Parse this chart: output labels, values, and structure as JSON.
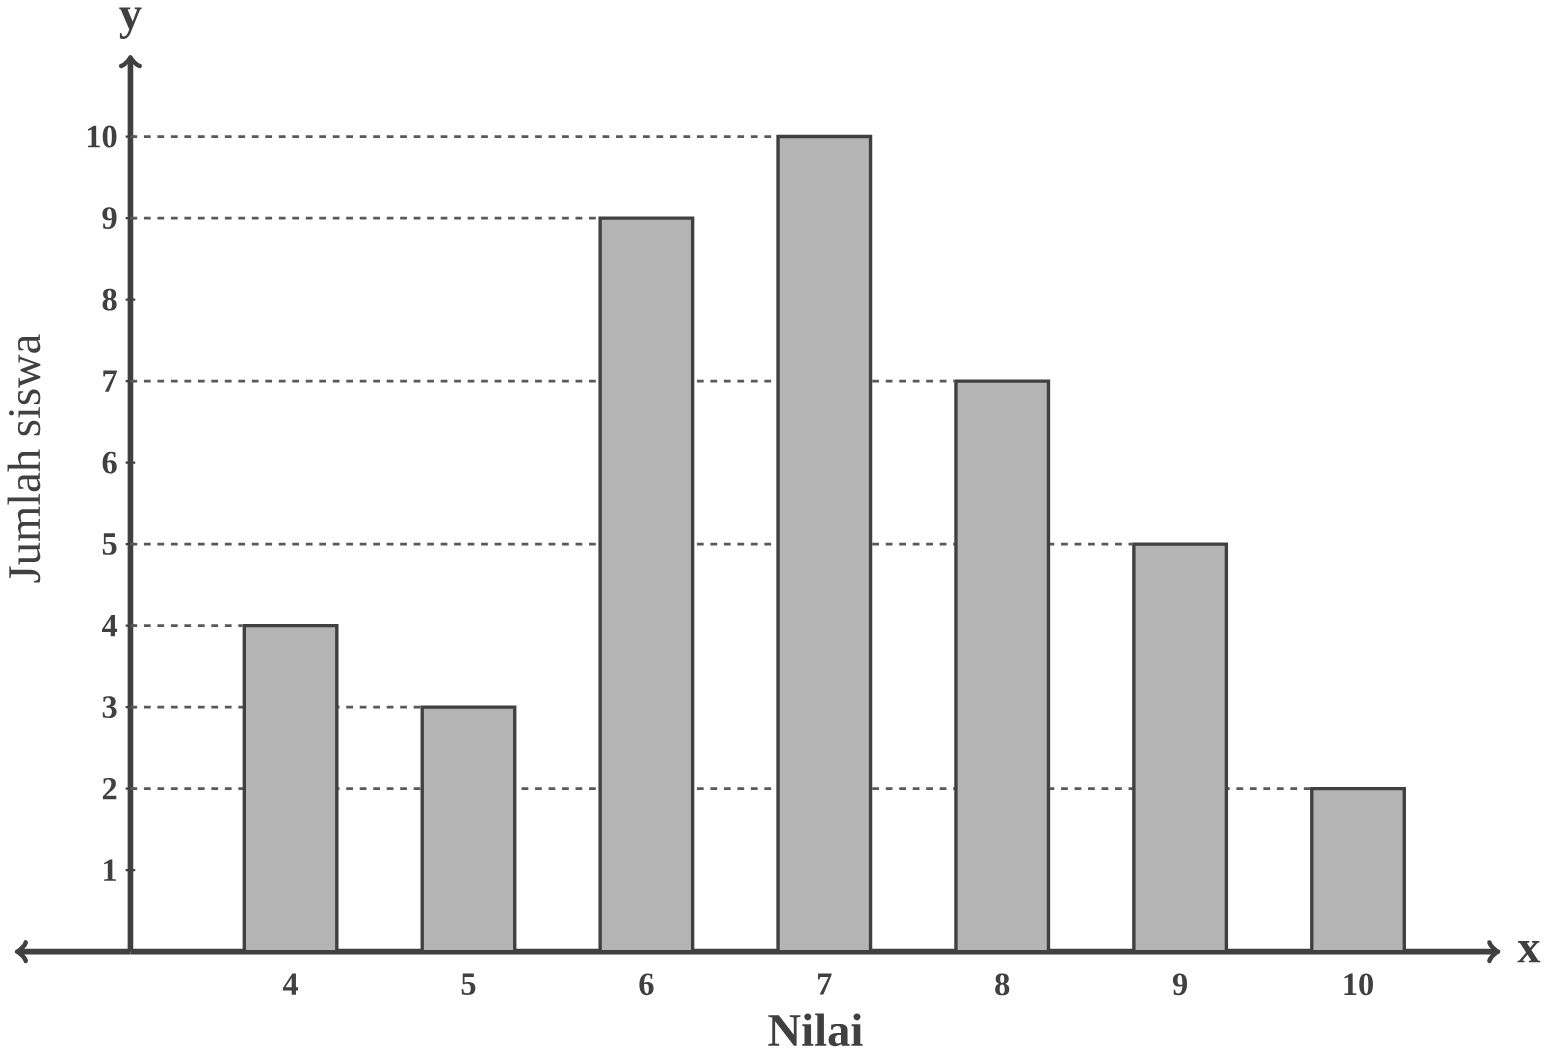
{
  "chart_data": {
    "type": "bar",
    "xlabel": "Nilai",
    "ylabel": "Jumlah siswa",
    "annotations": [
      "x",
      "y"
    ],
    "categories": [
      "4",
      "5",
      "6",
      "7",
      "8",
      "9",
      "10"
    ],
    "values": [
      4,
      3,
      9,
      10,
      7,
      5,
      2
    ],
    "color": "#b4b4b4",
    "grid": false,
    "ylim": [
      0,
      11
    ],
    "yticks": [
      1,
      2,
      3,
      4,
      5,
      6,
      7,
      8,
      9,
      10
    ],
    "ref_lines": [
      {
        "axis": "y",
        "value": 2,
        "line_style": "dashed"
      },
      {
        "axis": "y",
        "value": 3,
        "line_style": "dashed"
      },
      {
        "axis": "y",
        "value": 4,
        "line_style": "dashed"
      },
      {
        "axis": "y",
        "value": 5,
        "line_style": "dashed"
      },
      {
        "axis": "y",
        "value": 7,
        "line_style": "dashed"
      },
      {
        "axis": "y",
        "value": 9,
        "line_style": "dashed"
      },
      {
        "axis": "y",
        "value": 10,
        "line_style": "dashed"
      }
    ]
  }
}
